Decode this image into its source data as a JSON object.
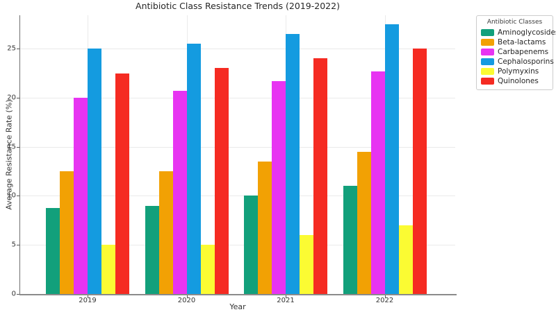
{
  "chart_data": {
    "type": "bar",
    "title": "Antibiotic Class Resistance Trends (2019-2022)",
    "xlabel": "Year",
    "ylabel": "Average Resistance Rate (%)",
    "categories": [
      "2019",
      "2020",
      "2021",
      "2022"
    ],
    "series": [
      {
        "name": "Aminoglycosides",
        "color": "#12a07b",
        "values": [
          8.77,
          9.0,
          10.0,
          11.0
        ]
      },
      {
        "name": "Beta-lactams",
        "color": "#f2a104",
        "values": [
          12.5,
          12.5,
          13.5,
          14.5
        ]
      },
      {
        "name": "Carbapenems",
        "color": "#e734f2",
        "values": [
          20.0,
          20.67,
          21.67,
          22.67
        ]
      },
      {
        "name": "Cephalosporins",
        "color": "#149be0",
        "values": [
          25.0,
          25.5,
          26.5,
          27.5
        ]
      },
      {
        "name": "Polymyxins",
        "color": "#fbfb33",
        "values": [
          5.0,
          5.0,
          6.0,
          7.0
        ]
      },
      {
        "name": "Quinolones",
        "color": "#f52b22",
        "values": [
          22.5,
          23.0,
          24.0,
          25.0
        ]
      }
    ],
    "yticks": [
      0,
      5,
      10,
      15,
      20,
      25
    ],
    "ylim": [
      0,
      28.4
    ],
    "grid": true,
    "legend_title": "Antibiotic Classes",
    "legend_position": "upper-right"
  }
}
